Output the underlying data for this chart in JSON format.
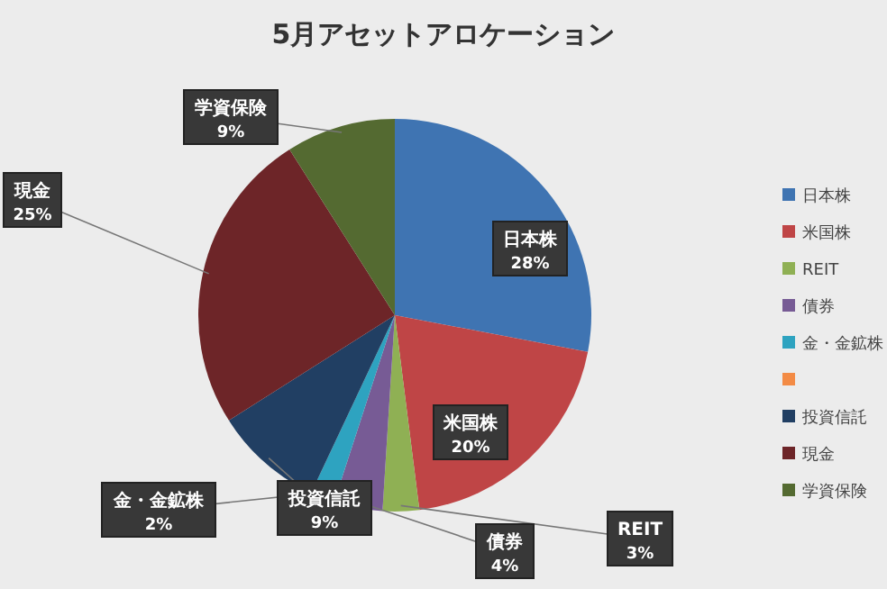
{
  "chart_data": {
    "type": "pie",
    "title": "5月アセットアロケーション",
    "categories": [
      "日本株",
      "米国株",
      "REIT",
      "債券",
      "金・金鉱株",
      null,
      "投資信託",
      "現金",
      "学資保険"
    ],
    "values": [
      28,
      20,
      3,
      4,
      2,
      0,
      9,
      25,
      9
    ],
    "value_labels": [
      "28%",
      "20%",
      "3%",
      "4%",
      "2%",
      null,
      "9%",
      "25%",
      "9%"
    ],
    "colors": [
      "#3f74b2",
      "#bf4546",
      "#8fb054",
      "#775b95",
      "#2ea3c0",
      "#f38b45",
      "#213f63",
      "#6d2528",
      "#546a31"
    ],
    "legend": "right"
  }
}
